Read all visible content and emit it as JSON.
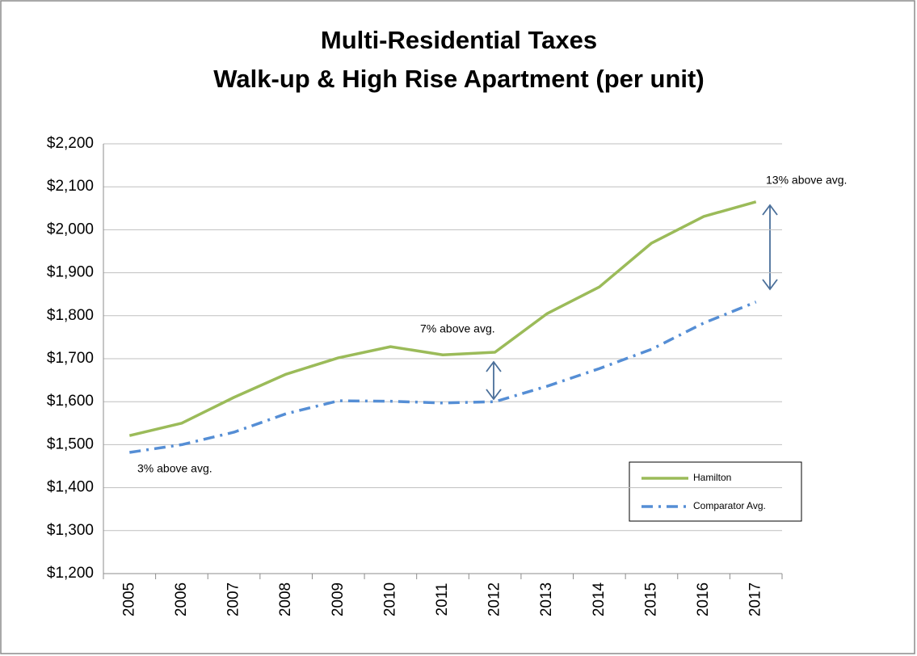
{
  "chart_data": {
    "type": "line",
    "title": "Multi-Residential Taxes",
    "subtitle": "Walk-up & High Rise Apartment (per unit)",
    "categories": [
      "2005",
      "2006",
      "2007",
      "2008",
      "2009",
      "2010",
      "2011",
      "2012",
      "2013",
      "2014",
      "2015",
      "2016",
      "2017"
    ],
    "series": [
      {
        "name": "Hamilton",
        "color": "#9bbb59",
        "values": [
          1521,
          1550,
          1610,
          1664,
          1702,
          1728,
          1709,
          1715,
          1805,
          1867,
          1969,
          2031,
          2065
        ]
      },
      {
        "name": "Comparator Avg.",
        "color": "#558ed5",
        "values": [
          1482,
          1500,
          1529,
          1572,
          1602,
          1601,
          1597,
          1600,
          1636,
          1677,
          1722,
          1783,
          1832
        ]
      }
    ],
    "ylim": [
      1200,
      2200
    ],
    "yticks": [
      {
        "value": 1200,
        "label": "$1,200"
      },
      {
        "value": 1300,
        "label": "$1,300"
      },
      {
        "value": 1400,
        "label": "$1,400"
      },
      {
        "value": 1500,
        "label": "$1,500"
      },
      {
        "value": 1600,
        "label": "$1,600"
      },
      {
        "value": 1700,
        "label": "$1,700"
      },
      {
        "value": 1800,
        "label": "$1,800"
      },
      {
        "value": 1900,
        "label": "$1,900"
      },
      {
        "value": 2000,
        "label": "$2,000"
      },
      {
        "value": 2100,
        "label": "$2,100"
      },
      {
        "value": 2200,
        "label": "$2,200"
      }
    ],
    "grid": true,
    "legend": "right",
    "annotations": [
      "3% above avg.",
      "7% above avg.",
      "13% above avg."
    ]
  }
}
